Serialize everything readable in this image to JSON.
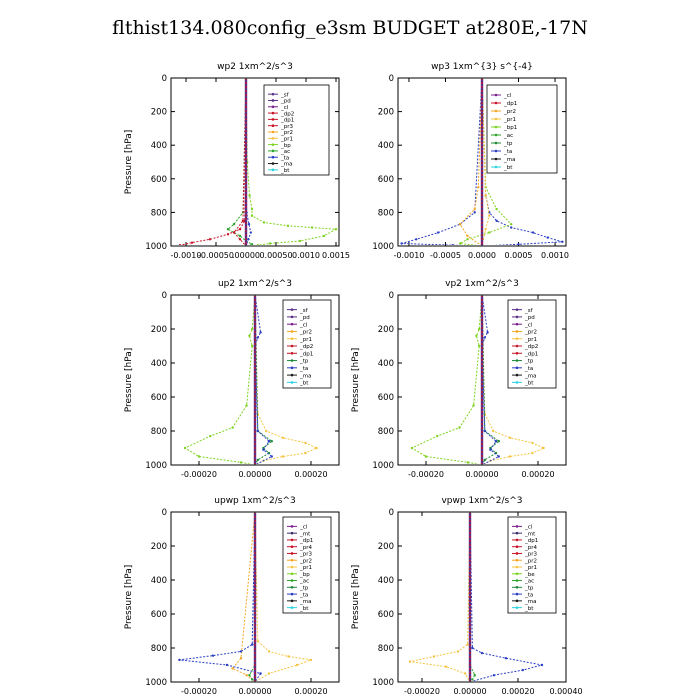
{
  "figure": {
    "title": "flthist134.080config_e3sm  BUDGET at280E,-17N"
  },
  "colors": {
    "frame": "#000000",
    "legend_border": "#000000",
    "series": {
      "sf": "#5a2d87",
      "pd": "#5a2d87",
      "cl": "#7a1f8c",
      "mt": "#3a2a6b",
      "dp2": "#c81428",
      "dp1": "#c81428",
      "pr4": "#c81428",
      "pr3": "#c81428",
      "pr2": "#f5a623",
      "pr1": "#f5c542",
      "bp": "#7ed321",
      "bp1": "#7ed321",
      "ac": "#2aa52a",
      "tp": "#1f8a3a",
      "ta": "#2b3fc4",
      "ma": "#1a1a1a",
      "bt": "#29d3e0",
      "be": "#7ed321"
    }
  },
  "chart_data": [
    {
      "type": "line",
      "title": "wp2   1xm^2/s^3",
      "ylabel": "Pressure [hPa]",
      "y_axis": "inverted",
      "ylim": [
        1000,
        0
      ],
      "xlim": [
        -0.00125,
        0.00155
      ],
      "xticks": [
        -0.001,
        -0.0005,
        0.0,
        0.0005,
        0.001,
        0.0015
      ],
      "xticklabels": [
        "-0.0010",
        "-0.00050",
        ".00000",
        "0.00050",
        "0.0010",
        "0.0015"
      ],
      "yticks": [
        0,
        200,
        400,
        600,
        800,
        1000
      ],
      "legend_position": "top-right",
      "legend": [
        "_sf",
        "_pd",
        "_cl",
        "_dp2",
        "_dp1",
        "_pr3",
        "_pr2",
        "_pr1",
        "_bp",
        "_ac",
        "_ta",
        "_ma",
        "_bt"
      ],
      "series": [
        {
          "name": "_pr1",
          "color_key": "bp",
          "x": [
            0,
            2e-05,
            6e-05,
            0.0001,
            0.0001,
            0.0003,
            0.0007,
            0.0011,
            0.0015,
            0.0013,
            0.0009,
            0.0004,
            0.0002,
            0.0
          ],
          "y": [
            0,
            500,
            700,
            780,
            820,
            860,
            880,
            890,
            900,
            940,
            970,
            985,
            995,
            1000
          ]
        },
        {
          "name": "_ac",
          "color_key": "ac",
          "x": [
            0,
            -5e-05,
            -0.0002,
            -0.0003,
            -0.0001,
            0.0,
            0.0001,
            0.0
          ],
          "y": [
            0,
            800,
            870,
            900,
            940,
            970,
            990,
            1000
          ]
        },
        {
          "name": "_dp1",
          "color_key": "dp1",
          "x": [
            0,
            -2e-05,
            -0.0001,
            -0.0003,
            -0.0006,
            -0.0009,
            -0.0011,
            -0.0005,
            0.0
          ],
          "y": [
            0,
            850,
            900,
            930,
            960,
            980,
            995,
            1000,
            1000
          ]
        },
        {
          "name": "_pr3",
          "color_key": "pr3",
          "x": [
            0,
            -5e-05,
            -0.0002,
            -0.0001,
            0.0
          ],
          "y": [
            0,
            850,
            920,
            960,
            1000
          ]
        },
        {
          "name": "_ta",
          "color_key": "ta",
          "x": [
            0,
            1e-05,
            5e-05,
            8e-05,
            4e-05,
            0.0
          ],
          "y": [
            0,
            800,
            870,
            920,
            960,
            1000
          ]
        },
        {
          "name": "_sf",
          "color_key": "sf",
          "x": [
            0,
            0.0,
            0.0
          ],
          "y": [
            0,
            500,
            1000
          ]
        }
      ]
    },
    {
      "type": "line",
      "title": "wp3   1xm^{3} s^{-4}",
      "ylabel": "",
      "y_axis": "inverted",
      "ylim": [
        1000,
        0
      ],
      "xlim": [
        -0.00115,
        0.00115
      ],
      "xticks": [
        -0.001,
        -0.0005,
        0.0,
        0.0005,
        0.001
      ],
      "xticklabels": [
        "-0.0010",
        "-0.0005",
        "0.0000",
        "0.0005",
        "0.0010"
      ],
      "yticks": [
        0,
        200,
        400,
        600,
        800,
        1000
      ],
      "legend_position": "top-right",
      "legend": [
        "_cl",
        "_dp1",
        "_pr2",
        "_pr1",
        "_bp1",
        "_ac",
        "_tp",
        "_ta",
        "_ma",
        "_bt"
      ],
      "series": [
        {
          "name": "_ta",
          "color_key": "ta",
          "x": [
            0,
            5e-05,
            0.0001,
            0.0002,
            0.0004,
            0.0007,
            0.0009,
            0.0011,
            0.0005,
            0.0
          ],
          "y": [
            0,
            700,
            800,
            850,
            890,
            920,
            950,
            975,
            990,
            1000
          ]
        },
        {
          "name": "_ta2",
          "color_key": "ta",
          "x": [
            0,
            -0.0001,
            -0.0003,
            -0.0006,
            -0.0009,
            -0.0011,
            -0.0004,
            0.0
          ],
          "y": [
            0,
            800,
            870,
            920,
            960,
            985,
            995,
            1000
          ]
        },
        {
          "name": "_bp1",
          "color_key": "bp1",
          "x": [
            0,
            5e-05,
            0.0002,
            0.0004,
            0.0001,
            -0.0002,
            -0.0003,
            0.0
          ],
          "y": [
            0,
            650,
            780,
            870,
            920,
            960,
            985,
            1000
          ]
        },
        {
          "name": "_pr2",
          "color_key": "pr2",
          "x": [
            0,
            -5e-05,
            -0.0001,
            -0.0003,
            -0.0002,
            0.0
          ],
          "y": [
            0,
            650,
            780,
            870,
            940,
            1000
          ]
        },
        {
          "name": "_pr1",
          "color_key": "pr1",
          "x": [
            0,
            5e-05,
            0.0001,
            5e-05,
            0.0
          ],
          "y": [
            0,
            700,
            820,
            900,
            1000
          ]
        },
        {
          "name": "_cl",
          "color_key": "cl",
          "x": [
            0,
            0.0,
            0.0
          ],
          "y": [
            0,
            500,
            1000
          ]
        }
      ]
    },
    {
      "type": "line",
      "title": "up2   1xm^2/s^3",
      "ylabel": "Pressure [hPa]",
      "y_axis": "inverted",
      "ylim": [
        1000,
        0
      ],
      "xlim": [
        -0.0003,
        0.0003
      ],
      "xticks": [
        -0.0002,
        0.0,
        0.0002
      ],
      "xticklabels": [
        "-0.00020",
        "0.00000",
        "0.00020"
      ],
      "yticks": [
        0,
        200,
        400,
        600,
        800,
        1000
      ],
      "legend_position": "top-right",
      "legend": [
        "_sf",
        "_pd",
        "_cl",
        "_pr2",
        "_pr1",
        "_dp2",
        "_dp1",
        "_tp",
        "_ta",
        "_ma",
        "_bt"
      ],
      "series": [
        {
          "name": "_pr1",
          "color_key": "pr1",
          "x": [
            0,
            1e-05,
            4e-05,
            0.0001,
            0.00018,
            0.00022,
            0.00018,
            0.0001,
            3e-05,
            0.0
          ],
          "y": [
            0,
            700,
            800,
            840,
            870,
            900,
            930,
            950,
            975,
            1000
          ]
        },
        {
          "name": "_dp1",
          "color_key": "bp",
          "x": [
            0,
            -1e-05,
            -2e-05,
            -1e-05,
            -3e-05,
            -8e-05,
            -0.00016,
            -0.00025,
            -0.0002,
            -5e-05,
            0.0
          ],
          "y": [
            0,
            200,
            240,
            300,
            650,
            780,
            830,
            900,
            950,
            985,
            1000
          ]
        },
        {
          "name": "_tp",
          "color_key": "tp",
          "x": [
            0,
            1e-05,
            6e-05,
            3e-05,
            5e-05,
            1e-05,
            0.0
          ],
          "y": [
            0,
            800,
            860,
            900,
            930,
            970,
            1000
          ]
        },
        {
          "name": "_ta",
          "color_key": "ta",
          "x": [
            0,
            2e-05,
            1e-05,
            0.0,
            1e-05,
            5e-05,
            3e-05,
            6e-05,
            0.0
          ],
          "y": [
            0,
            220,
            250,
            300,
            800,
            860,
            910,
            950,
            1000
          ]
        },
        {
          "name": "_sf",
          "color_key": "pr4",
          "x": [
            0,
            0.0,
            0.0
          ],
          "y": [
            0,
            500,
            1000
          ]
        }
      ]
    },
    {
      "type": "line",
      "title": "vp2   1xm^2/s^3",
      "ylabel": "Pressure [hPa]",
      "y_axis": "inverted",
      "ylim": [
        1000,
        0
      ],
      "xlim": [
        -0.0003,
        0.0003
      ],
      "xticks": [
        -0.0002,
        0.0,
        0.0002
      ],
      "xticklabels": [
        "-0.00020",
        "0.00000",
        "0.00020"
      ],
      "yticks": [
        0,
        200,
        400,
        600,
        800,
        1000
      ],
      "legend_position": "top-right",
      "legend": [
        "_sf",
        "_pd",
        "_cl",
        "_pr2",
        "_pr1",
        "_dp2",
        "_dp1",
        "_tp",
        "_ta",
        "_ma",
        "_bt"
      ],
      "series": [
        {
          "name": "_pr1",
          "color_key": "pr1",
          "x": [
            0,
            1e-05,
            4e-05,
            0.0001,
            0.00018,
            0.00022,
            0.00018,
            0.0001,
            3e-05,
            0.0
          ],
          "y": [
            0,
            700,
            800,
            840,
            870,
            900,
            930,
            950,
            975,
            1000
          ]
        },
        {
          "name": "_dp1",
          "color_key": "bp",
          "x": [
            0,
            -1e-05,
            -2e-05,
            -1e-05,
            -3e-05,
            -8e-05,
            -0.00016,
            -0.00025,
            -0.0002,
            -5e-05,
            0.0
          ],
          "y": [
            0,
            200,
            240,
            300,
            650,
            780,
            830,
            900,
            950,
            985,
            1000
          ]
        },
        {
          "name": "_tp",
          "color_key": "tp",
          "x": [
            0,
            1e-05,
            6e-05,
            3e-05,
            5e-05,
            1e-05,
            0.0
          ],
          "y": [
            0,
            800,
            860,
            900,
            930,
            970,
            1000
          ]
        },
        {
          "name": "_ta",
          "color_key": "ta",
          "x": [
            0,
            2e-05,
            1e-05,
            0.0,
            1e-05,
            5e-05,
            3e-05,
            6e-05,
            0.0
          ],
          "y": [
            0,
            220,
            250,
            300,
            800,
            860,
            910,
            950,
            1000
          ]
        },
        {
          "name": "_sf",
          "color_key": "pr4",
          "x": [
            0,
            0.0,
            0.0
          ],
          "y": [
            0,
            500,
            1000
          ]
        }
      ]
    },
    {
      "type": "line",
      "title": "upwp   1xm^2/s^3",
      "ylabel": "Pressure [hPa]",
      "y_axis": "inverted",
      "ylim": [
        1000,
        0
      ],
      "xlim": [
        -0.0003,
        0.0003
      ],
      "xticks": [
        -0.0002,
        0.0,
        0.0002
      ],
      "xticklabels": [
        "-0.00020",
        "0.00000",
        "0.00020"
      ],
      "yticks": [
        0,
        200,
        400,
        600,
        800,
        1000
      ],
      "legend_position": "top-right",
      "legend": [
        "_cl",
        "_mt",
        "_dp1",
        "_pr4",
        "_pr3",
        "_pr2",
        "_pr1",
        "_bp",
        "_ac",
        "_tp",
        "_ta",
        "_ma",
        "_bt"
      ],
      "series": [
        {
          "name": "_pr2",
          "color_key": "pr1",
          "x": [
            0,
            1e-05,
            5e-05,
            0.00012,
            0.0002,
            0.00015,
            5e-05,
            0.0
          ],
          "y": [
            0,
            760,
            820,
            850,
            870,
            900,
            950,
            1000
          ]
        },
        {
          "name": "_pr1",
          "color_key": "pr2",
          "x": [
            0,
            -5e-05,
            -8e-05,
            -3e-05,
            0.0
          ],
          "y": [
            0,
            860,
            920,
            960,
            1000
          ]
        },
        {
          "name": "_ta",
          "color_key": "ta",
          "x": [
            0,
            -1e-05,
            -5e-05,
            -0.00015,
            -0.00027,
            -0.0001,
            2e-05,
            0.0
          ],
          "y": [
            0,
            780,
            820,
            845,
            870,
            900,
            950,
            1000
          ]
        },
        {
          "name": "_ac",
          "color_key": "ac",
          "x": [
            0,
            0.0,
            -2e-05,
            -1e-05,
            0.0
          ],
          "y": [
            0,
            900,
            960,
            985,
            1000
          ]
        },
        {
          "name": "_cl",
          "color_key": "pr4",
          "x": [
            0,
            0.0,
            0.0
          ],
          "y": [
            0,
            500,
            1000
          ]
        }
      ]
    },
    {
      "type": "line",
      "title": "vpwp   1xm^2/s^3",
      "ylabel": "Pressure [hPa]",
      "y_axis": "inverted",
      "ylim": [
        1000,
        0
      ],
      "xlim": [
        -0.0003,
        0.0004
      ],
      "xticks": [
        -0.0002,
        0.0,
        0.0002,
        0.0004
      ],
      "xticklabels": [
        "-0.00020",
        "0.00000",
        "0.00020",
        "0.00040"
      ],
      "yticks": [
        0,
        200,
        400,
        600,
        800,
        1000
      ],
      "legend_position": "top-right",
      "legend": [
        "_cl",
        "_mt",
        "_dp1",
        "_pr4",
        "_pr3",
        "_pr2",
        "_pr1",
        "_be",
        "_ac",
        "_tp",
        "_ta",
        "_ma",
        "_bt"
      ],
      "series": [
        {
          "name": "_pr1",
          "color_key": "pr1",
          "x": [
            0,
            -1e-05,
            -5e-05,
            -0.00015,
            -0.00025,
            -0.0001,
            -2e-05,
            0.0
          ],
          "y": [
            0,
            780,
            820,
            850,
            880,
            910,
            950,
            1000
          ]
        },
        {
          "name": "_ta",
          "color_key": "ta",
          "x": [
            0,
            1e-05,
            5e-05,
            0.00015,
            0.0003,
            0.00022,
            0.0001,
            0.0
          ],
          "y": [
            0,
            800,
            830,
            860,
            900,
            930,
            960,
            1000
          ]
        },
        {
          "name": "_ac",
          "color_key": "ac",
          "x": [
            0,
            0.0,
            2e-05,
            1e-05,
            0.0
          ],
          "y": [
            0,
            900,
            960,
            985,
            1000
          ]
        },
        {
          "name": "_cl",
          "color_key": "pr4",
          "x": [
            0,
            0.0,
            0.0
          ],
          "y": [
            0,
            500,
            1000
          ]
        }
      ]
    }
  ]
}
